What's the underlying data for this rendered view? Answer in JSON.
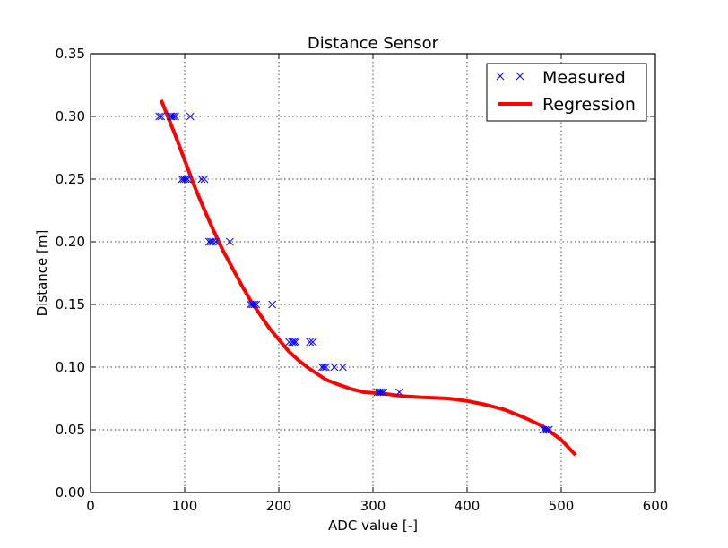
{
  "chart_data": {
    "type": "scatter",
    "title": "Distance Sensor",
    "xlabel": "ADC value [-]",
    "ylabel": "Distance [m]",
    "xlim": [
      0,
      600
    ],
    "ylim": [
      0.0,
      0.35
    ],
    "xticks": [
      0,
      100,
      200,
      300,
      400,
      500,
      600
    ],
    "xtick_labels": [
      "0",
      "100",
      "200",
      "300",
      "400",
      "500",
      "600"
    ],
    "yticks": [
      0.0,
      0.05,
      0.1,
      0.15,
      0.2,
      0.25,
      0.3,
      0.35
    ],
    "ytick_labels": [
      "0.00",
      "0.05",
      "0.10",
      "0.15",
      "0.20",
      "0.25",
      "0.30",
      "0.35"
    ],
    "grid": true,
    "legend_position": "top-right",
    "series": [
      {
        "name": "Measured",
        "kind": "scatter",
        "marker": "x",
        "color": "#0000ff",
        "points": [
          [
            73,
            0.3
          ],
          [
            75,
            0.3
          ],
          [
            85,
            0.3
          ],
          [
            86,
            0.3
          ],
          [
            88,
            0.3
          ],
          [
            90,
            0.3
          ],
          [
            106,
            0.3
          ],
          [
            97,
            0.25
          ],
          [
            99,
            0.25
          ],
          [
            101,
            0.25
          ],
          [
            103,
            0.25
          ],
          [
            118,
            0.25
          ],
          [
            121,
            0.25
          ],
          [
            126,
            0.2
          ],
          [
            128,
            0.2
          ],
          [
            130,
            0.2
          ],
          [
            133,
            0.2
          ],
          [
            148,
            0.2
          ],
          [
            170,
            0.15
          ],
          [
            172,
            0.15
          ],
          [
            174,
            0.15
          ],
          [
            176,
            0.15
          ],
          [
            193,
            0.15
          ],
          [
            211,
            0.12
          ],
          [
            214,
            0.12
          ],
          [
            216,
            0.12
          ],
          [
            218,
            0.12
          ],
          [
            233,
            0.12
          ],
          [
            236,
            0.12
          ],
          [
            246,
            0.1
          ],
          [
            248,
            0.1
          ],
          [
            250,
            0.1
          ],
          [
            259,
            0.1
          ],
          [
            268,
            0.1
          ],
          [
            305,
            0.08
          ],
          [
            307,
            0.08
          ],
          [
            309,
            0.08
          ],
          [
            311,
            0.08
          ],
          [
            328,
            0.08
          ],
          [
            481,
            0.05
          ],
          [
            483,
            0.05
          ],
          [
            485,
            0.05
          ],
          [
            487,
            0.05
          ]
        ]
      },
      {
        "name": "Regression",
        "kind": "line",
        "color": "#ff0000",
        "points": [
          [
            75,
            0.313
          ],
          [
            90,
            0.285
          ],
          [
            100,
            0.265
          ],
          [
            110,
            0.245
          ],
          [
            120,
            0.227
          ],
          [
            130,
            0.21
          ],
          [
            140,
            0.194
          ],
          [
            150,
            0.18
          ],
          [
            160,
            0.166
          ],
          [
            170,
            0.153
          ],
          [
            180,
            0.142
          ],
          [
            190,
            0.131
          ],
          [
            200,
            0.122
          ],
          [
            210,
            0.113
          ],
          [
            220,
            0.106
          ],
          [
            230,
            0.1
          ],
          [
            240,
            0.095
          ],
          [
            250,
            0.09
          ],
          [
            260,
            0.087
          ],
          [
            275,
            0.083
          ],
          [
            290,
            0.08
          ],
          [
            310,
            0.079
          ],
          [
            330,
            0.077
          ],
          [
            350,
            0.076
          ],
          [
            380,
            0.075
          ],
          [
            400,
            0.073
          ],
          [
            420,
            0.07
          ],
          [
            440,
            0.066
          ],
          [
            460,
            0.06
          ],
          [
            480,
            0.053
          ],
          [
            500,
            0.042
          ],
          [
            515,
            0.03
          ]
        ]
      }
    ]
  }
}
